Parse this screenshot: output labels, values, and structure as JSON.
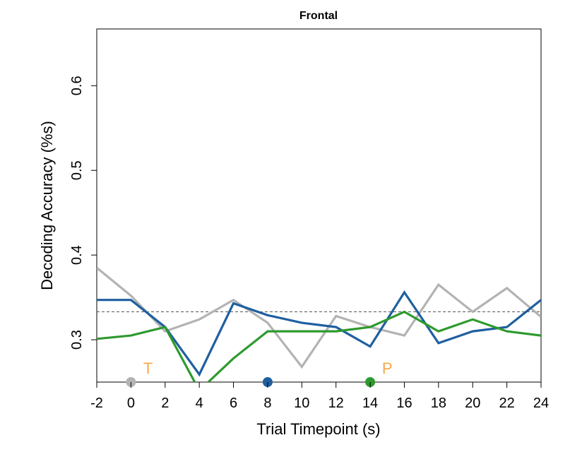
{
  "chart_data": {
    "type": "line",
    "title": "Frontal",
    "xlabel": "Trial Timepoint (s)",
    "ylabel": "Decoding Accuracy (%s)",
    "xlim": [
      -2,
      24
    ],
    "ylim": [
      0.25,
      0.667
    ],
    "x_ticks": [
      -2,
      0,
      2,
      4,
      6,
      8,
      10,
      12,
      14,
      16,
      18,
      20,
      22,
      24
    ],
    "x_tick_labels": [
      "-2",
      "0",
      "2",
      "4",
      "6",
      "8",
      "10",
      "12",
      "14",
      "16",
      "18",
      "20",
      "22",
      "24"
    ],
    "y_ticks": [
      0.3,
      0.4,
      0.5,
      0.6
    ],
    "y_tick_labels": [
      "0.3",
      "0.4",
      "0.5",
      "0.6"
    ],
    "grid": false,
    "reference_line": {
      "y": 0.333,
      "style": "dashed",
      "color": "#555555"
    },
    "x": [
      -2,
      0,
      2,
      4,
      6,
      8,
      10,
      12,
      14,
      16,
      18,
      20,
      22,
      24
    ],
    "series": [
      {
        "color": "#b3b3b3",
        "values": [
          0.385,
          0.352,
          0.31,
          0.324,
          0.347,
          0.32,
          0.268,
          0.328,
          0.315,
          0.305,
          0.365,
          0.333,
          0.361,
          0.327
        ]
      },
      {
        "color": "#1f5fa0",
        "values": [
          0.347,
          0.347,
          0.315,
          0.259,
          0.343,
          0.329,
          0.32,
          0.315,
          0.292,
          0.356,
          0.296,
          0.31,
          0.315,
          0.347
        ]
      },
      {
        "color": "#2e9a2e",
        "values": [
          0.301,
          0.305,
          0.315,
          0.24,
          0.278,
          0.31,
          0.31,
          0.31,
          0.315,
          0.333,
          0.31,
          0.324,
          0.31,
          0.305
        ]
      }
    ],
    "event_markers": [
      {
        "x": 0,
        "color": "#b3b3b3"
      },
      {
        "x": 8,
        "color": "#1f5fa0"
      },
      {
        "x": 14,
        "color": "#2e9a2e"
      }
    ],
    "annotations": [
      {
        "text": "T",
        "x": 1,
        "color": "#f7a84a"
      },
      {
        "text": "P",
        "x": 15,
        "color": "#f7a84a"
      }
    ]
  }
}
